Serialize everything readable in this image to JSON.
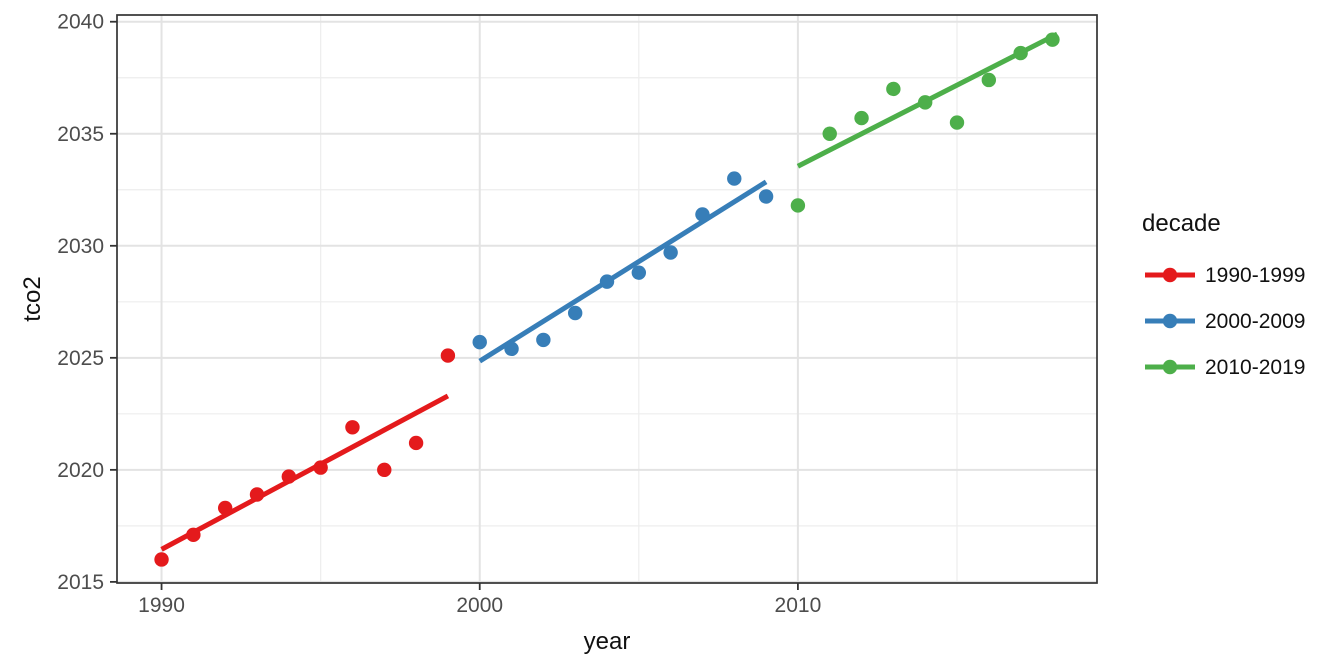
{
  "chart_data": {
    "type": "scatter",
    "title": "",
    "xlabel": "year",
    "ylabel": "tco2",
    "x_domain": [
      1988.6,
      2019.4
    ],
    "y_domain": [
      2014.95,
      2040.3
    ],
    "x_ticks": [
      1990,
      2000,
      2010
    ],
    "x_minor_ticks": [
      1995,
      2005,
      2015
    ],
    "y_ticks": [
      2015,
      2020,
      2025,
      2030,
      2035,
      2040
    ],
    "y_minor_ticks": [
      2017.5,
      2022.5,
      2027.5,
      2032.5,
      2037.5
    ],
    "grid": true,
    "legend": {
      "title": "decade",
      "position": "right"
    },
    "style": {
      "background": "#ffffff",
      "panel_border_color": "#333333",
      "major_grid_color": "#e3e3e3",
      "minor_grid_color": "#ededed",
      "tick_color": "#333333",
      "tick_label_color": "#4d4d4d",
      "point_radius": 7.2,
      "line_width": 5
    },
    "series": [
      {
        "name": "1990-1999",
        "color": "#E41A1C",
        "x": [
          1990,
          1991,
          1992,
          1993,
          1994,
          1995,
          1996,
          1997,
          1998,
          1999
        ],
        "y": [
          2016.0,
          2017.1,
          2018.3,
          2018.9,
          2019.7,
          2020.1,
          2021.9,
          2020.0,
          2021.2,
          2025.1
        ],
        "trend_line": {
          "x1": 1990,
          "y1": 2016.45,
          "x2": 1999,
          "y2": 2023.3
        }
      },
      {
        "name": "2000-2009",
        "color": "#377EB8",
        "x": [
          2000,
          2001,
          2002,
          2003,
          2004,
          2005,
          2006,
          2007,
          2008,
          2009
        ],
        "y": [
          2025.7,
          2025.4,
          2025.8,
          2027.0,
          2028.4,
          2028.8,
          2029.7,
          2031.4,
          2033.0,
          2032.2
        ],
        "trend_line": {
          "x1": 2000,
          "y1": 2024.85,
          "x2": 2009,
          "y2": 2032.85
        }
      },
      {
        "name": "2010-2019",
        "color": "#4DAF4A",
        "x": [
          2010,
          2011,
          2012,
          2013,
          2014,
          2015,
          2016,
          2017,
          2018
        ],
        "y": [
          2031.8,
          2035.0,
          2035.7,
          2037.0,
          2036.4,
          2035.5,
          2037.4,
          2038.6,
          2039.2
        ],
        "trend_line": {
          "x1": 2010,
          "y1": 2033.55,
          "x2": 2018.15,
          "y2": 2039.45
        }
      }
    ]
  }
}
